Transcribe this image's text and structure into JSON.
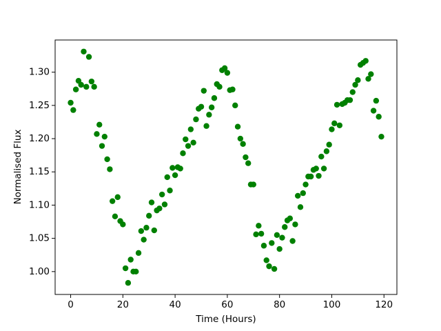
{
  "chart_data": {
    "type": "scatter",
    "x_label": "Time (Hours)",
    "y_label": "Normalised Flux",
    "color": "#008000",
    "grid": false,
    "xlim": [
      -5.95,
      124.95
    ],
    "ylim": [
      0.9656,
      1.3484
    ],
    "xticks": [
      0,
      20,
      40,
      60,
      80,
      100,
      120
    ],
    "yticks": [
      {
        "value": 1.0,
        "label": "1.00"
      },
      1.05,
      {
        "value": 1.1,
        "label": "1.10"
      },
      1.15,
      {
        "value": 1.2,
        "label": "1.20"
      },
      1.25,
      {
        "value": 1.3,
        "label": "1.30"
      }
    ],
    "x": [
      0,
      1,
      2,
      3,
      4,
      5,
      6,
      7,
      8,
      9,
      10,
      11,
      12,
      13,
      14,
      15,
      16,
      17,
      18,
      19,
      20,
      21,
      22,
      23,
      24,
      25,
      26,
      27,
      28,
      29,
      30,
      31,
      32,
      33,
      34,
      35,
      36,
      37,
      38,
      39,
      40,
      41,
      42,
      43,
      44,
      45,
      46,
      47,
      48,
      49,
      50,
      51,
      52,
      53,
      54,
      55,
      56,
      57,
      58,
      59,
      60,
      61,
      62,
      63,
      64,
      65,
      66,
      67,
      68,
      69,
      70,
      71,
      72,
      73,
      74,
      75,
      76,
      77,
      78,
      79,
      80,
      81,
      82,
      83,
      84,
      85,
      86,
      87,
      88,
      89,
      90,
      91,
      92,
      93,
      94,
      95,
      96,
      97,
      98,
      99,
      100,
      101,
      102,
      103,
      104,
      105,
      106,
      107,
      108,
      109,
      110,
      111,
      112,
      113,
      114,
      115,
      116,
      117,
      118,
      119
    ],
    "values": [
      1.254,
      1.243,
      1.274,
      1.287,
      1.281,
      1.331,
      1.278,
      1.323,
      1.286,
      1.278,
      1.207,
      1.221,
      1.189,
      1.203,
      1.169,
      1.154,
      1.106,
      1.083,
      1.112,
      1.076,
      1.071,
      1.005,
      0.983,
      1.018,
      1.0,
      1.0,
      1.028,
      1.061,
      1.048,
      1.066,
      1.084,
      1.104,
      1.062,
      1.092,
      1.095,
      1.116,
      1.101,
      1.142,
      1.122,
      1.156,
      1.145,
      1.157,
      1.155,
      1.178,
      1.199,
      1.189,
      1.214,
      1.194,
      1.229,
      1.245,
      1.248,
      1.272,
      1.219,
      1.236,
      1.247,
      1.261,
      1.282,
      1.278,
      1.303,
      1.306,
      1.299,
      1.273,
      1.274,
      1.25,
      1.218,
      1.2,
      1.192,
      1.172,
      1.163,
      1.131,
      1.131,
      1.056,
      1.069,
      1.057,
      1.039,
      1.017,
      1.008,
      1.043,
      1.004,
      1.055,
      1.034,
      1.051,
      1.067,
      1.077,
      1.08,
      1.046,
      1.071,
      1.114,
      1.097,
      1.118,
      1.131,
      1.143,
      1.143,
      1.153,
      1.155,
      1.144,
      1.173,
      1.155,
      1.181,
      1.191,
      1.214,
      1.223,
      1.251,
      1.22,
      1.252,
      1.254,
      1.258,
      1.258,
      1.27,
      1.281,
      1.288,
      1.311,
      1.314,
      1.317,
      1.29,
      1.297,
      1.242,
      1.257,
      1.233,
      1.203
    ]
  }
}
